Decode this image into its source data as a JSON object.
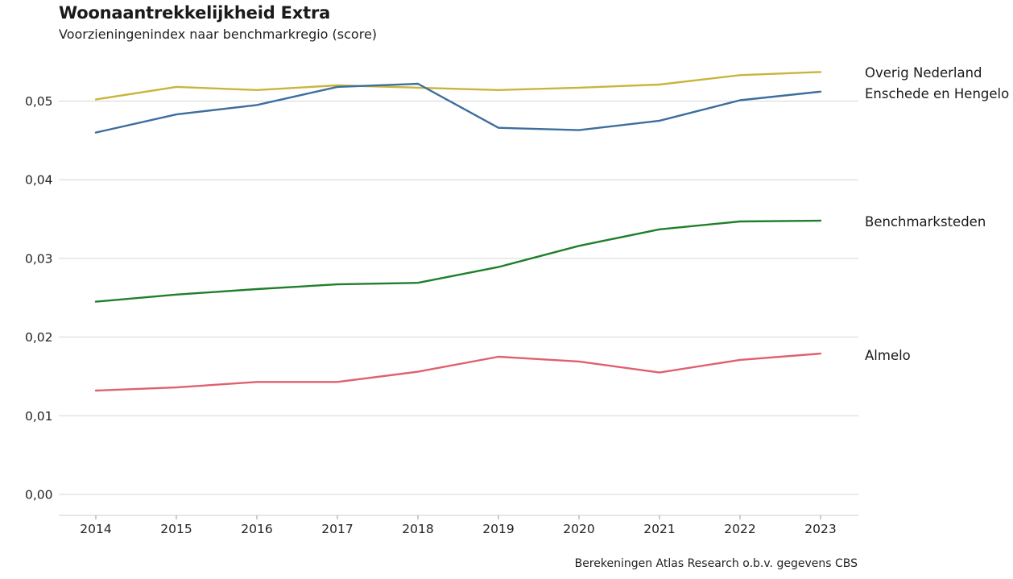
{
  "header": {
    "title": "Woonaantrekkelijkheid Extra",
    "subtitle": "Voorzieningenindex naar benchmarkregio (score)"
  },
  "footer": {
    "source": "Berekeningen Atlas Research o.b.v. gegevens CBS"
  },
  "chart_data": {
    "type": "line",
    "title": "Woonaantrekkelijkheid Extra",
    "subtitle": "Voorzieningenindex naar benchmarkregio (score)",
    "x": [
      2014,
      2015,
      2016,
      2017,
      2018,
      2019,
      2020,
      2021,
      2022,
      2023
    ],
    "ylim": [
      0,
      0.055
    ],
    "yticks": [
      0.0,
      0.01,
      0.02,
      0.03,
      0.04,
      0.05
    ],
    "ytick_labels": [
      "0,00",
      "0,01",
      "0,02",
      "0,03",
      "0,04",
      "0,05"
    ],
    "grid": "horizontal",
    "legend": "direct labels at right end of lines",
    "series": [
      {
        "name": "Overig Nederland",
        "color": "#c9b53b",
        "values": [
          0.0502,
          0.0518,
          0.0514,
          0.052,
          0.0517,
          0.0514,
          0.0517,
          0.0521,
          0.0533,
          0.0537
        ]
      },
      {
        "name": "Enschede en Hengelo",
        "color": "#3d6e9e",
        "values": [
          0.046,
          0.0483,
          0.0495,
          0.0518,
          0.0522,
          0.0466,
          0.0463,
          0.0475,
          0.0501,
          0.0512
        ]
      },
      {
        "name": "Benchmarksteden",
        "color": "#1f7f2c",
        "values": [
          0.0245,
          0.0254,
          0.0261,
          0.0267,
          0.0269,
          0.0289,
          0.0316,
          0.0337,
          0.0347,
          0.0348
        ]
      },
      {
        "name": "Almelo",
        "color": "#e0606e",
        "values": [
          0.0132,
          0.0136,
          0.0143,
          0.0143,
          0.0156,
          0.0175,
          0.0169,
          0.0155,
          0.0171,
          0.0179
        ]
      }
    ]
  }
}
